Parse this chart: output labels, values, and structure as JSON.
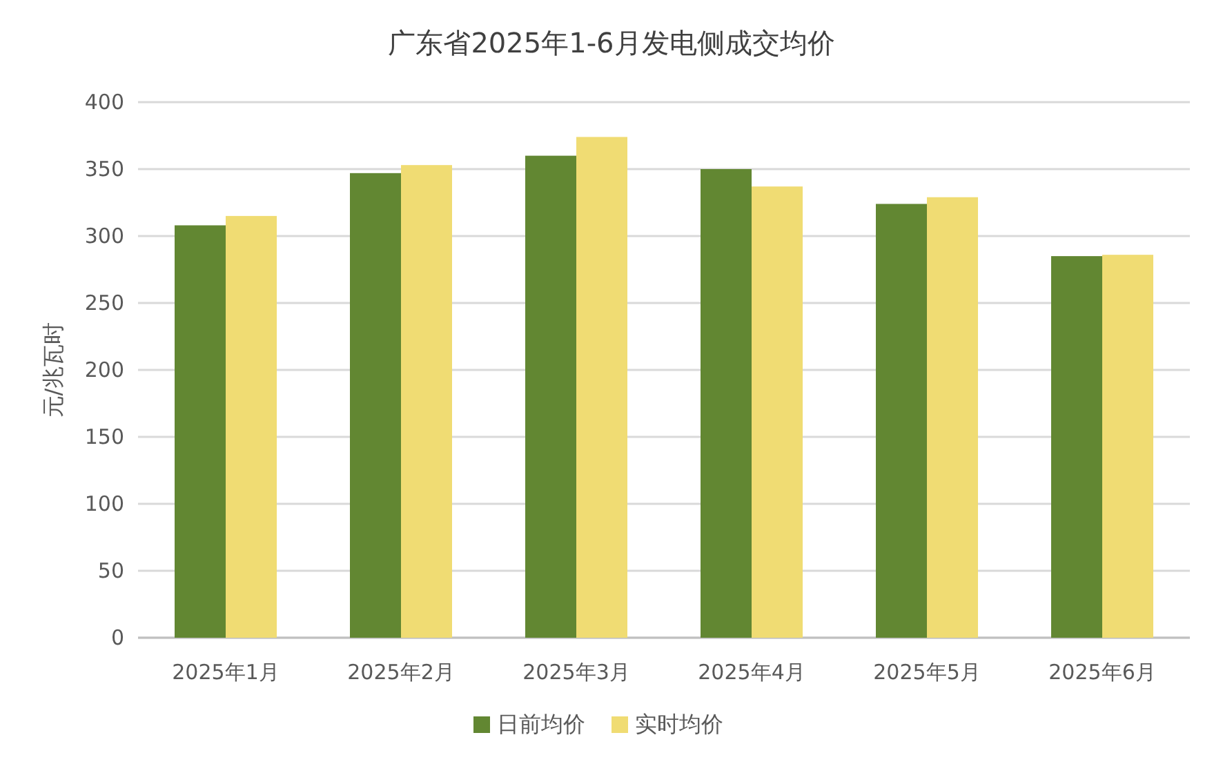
{
  "chart_data": {
    "type": "bar",
    "title": "广东省2025年1-6月发电侧成交均价",
    "ylabel": "元/兆瓦时",
    "categories": [
      "2025年1月",
      "2025年2月",
      "2025年3月",
      "2025年4月",
      "2025年5月",
      "2025年6月"
    ],
    "series": [
      {
        "name": "日前均价",
        "color": "#628732",
        "values": [
          308,
          347,
          360,
          350,
          324,
          285
        ]
      },
      {
        "name": "实时均价",
        "color": "#f0dc73",
        "values": [
          315,
          353,
          374,
          337,
          329,
          286
        ]
      }
    ],
    "ylim": [
      0,
      400
    ],
    "yticks": [
      0,
      50,
      100,
      150,
      200,
      250,
      300,
      350,
      400
    ],
    "grid": "y",
    "legend": "bottom"
  }
}
